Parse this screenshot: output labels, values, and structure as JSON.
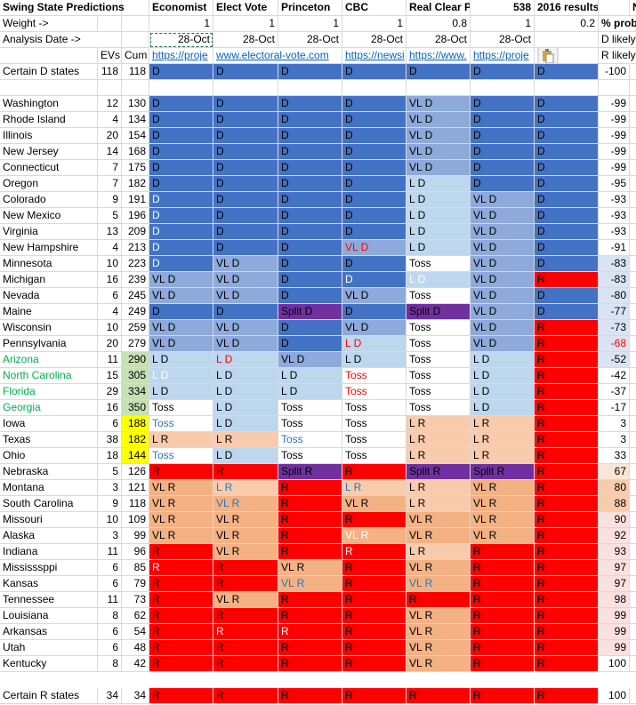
{
  "header": {
    "title": "Swing State Predictions",
    "sources": [
      "Economist",
      "Elect Vote",
      "Princeton",
      "CBC",
      "Real Clear P",
      "538",
      "2016 results"
    ],
    "next_col": "N"
  },
  "weight": {
    "label": "Weight ->",
    "values": [
      1,
      1,
      1,
      1,
      0.8,
      1,
      0.2
    ],
    "prob_label": "% prob"
  },
  "date": {
    "label": "Analysis Date ->",
    "values": [
      "28-Oct",
      "28-Oct",
      "28-Oct",
      "28-Oct",
      "28-Oct",
      "28-Oct"
    ],
    "prob_label": "D likely"
  },
  "links": {
    "evs": "EVs",
    "cum": "Cum",
    "urls": [
      "https://proje",
      "www.electoral-vote.com",
      null,
      "https://newsi",
      "https://www.",
      "https://proje"
    ],
    "prob_label": "R likely"
  },
  "rows": [
    {
      "state": "Certain D states",
      "evs": 118,
      "cum": 118,
      "calls": [
        "D",
        "D",
        "D",
        "D",
        "D",
        "D",
        "D"
      ],
      "fills": [
        "#4472c4",
        "#4472c4",
        "#4472c4",
        "#4472c4",
        "#4472c4",
        "#4472c4",
        "#4472c4"
      ],
      "prob": -100,
      "prob_fill": "#ffffff"
    },
    {
      "state": "Washington",
      "evs": 12,
      "cum": 130,
      "calls": [
        "D",
        "D",
        "D",
        "D",
        "VL D",
        "D",
        "D"
      ],
      "fills": [
        "#4472c4",
        "#4472c4",
        "#4472c4",
        "#4472c4",
        "#8eaadb",
        "#4472c4",
        "#4472c4"
      ],
      "prob": -99,
      "prob_fill": "#ffffff"
    },
    {
      "state": "Rhode Island",
      "evs": 4,
      "cum": 134,
      "calls": [
        "D",
        "D",
        "D",
        "D",
        "VL D",
        "D",
        "D"
      ],
      "fills": [
        "#4472c4",
        "#4472c4",
        "#4472c4",
        "#4472c4",
        "#8eaadb",
        "#4472c4",
        "#4472c4"
      ],
      "prob": -99,
      "prob_fill": "#ffffff"
    },
    {
      "state": "Illinois",
      "evs": 20,
      "cum": 154,
      "calls": [
        "D",
        "D",
        "D",
        "D",
        "VL D",
        "D",
        "D"
      ],
      "fills": [
        "#4472c4",
        "#4472c4",
        "#4472c4",
        "#4472c4",
        "#8eaadb",
        "#4472c4",
        "#4472c4"
      ],
      "prob": -99,
      "prob_fill": "#ffffff"
    },
    {
      "state": "New Jersey",
      "evs": 14,
      "cum": 168,
      "calls": [
        "D",
        "D",
        "D",
        "D",
        "VL D",
        "D",
        "D"
      ],
      "fills": [
        "#4472c4",
        "#4472c4",
        "#4472c4",
        "#4472c4",
        "#8eaadb",
        "#4472c4",
        "#4472c4"
      ],
      "prob": -99,
      "prob_fill": "#ffffff"
    },
    {
      "state": "Connecticut",
      "evs": 7,
      "cum": 175,
      "calls": [
        "D",
        "D",
        "D",
        "D",
        "VL D",
        "D",
        "D"
      ],
      "fills": [
        "#4472c4",
        "#4472c4",
        "#4472c4",
        "#4472c4",
        "#8eaadb",
        "#4472c4",
        "#4472c4"
      ],
      "prob": -99,
      "prob_fill": "#ffffff"
    },
    {
      "state": "Oregon",
      "evs": 7,
      "cum": 182,
      "calls": [
        "D",
        "D",
        "D",
        "D",
        "L D",
        "D",
        "D"
      ],
      "fills": [
        "#4472c4",
        "#4472c4",
        "#4472c4",
        "#4472c4",
        "#bdd7ee",
        "#4472c4",
        "#4472c4"
      ],
      "prob": -95,
      "prob_fill": "#ffffff"
    },
    {
      "state": "Colorado",
      "evs": 9,
      "cum": 191,
      "calls": [
        "D",
        "D",
        "D",
        "D",
        "L D",
        "VL D",
        "D"
      ],
      "fills": [
        "#4472c4",
        "#4472c4",
        "#4472c4",
        "#4472c4",
        "#bdd7ee",
        "#8eaadb",
        "#4472c4"
      ],
      "inks": [
        "#ffffff"
      ],
      "prob": -93,
      "prob_fill": "#ffffff"
    },
    {
      "state": "New Mexico",
      "evs": 5,
      "cum": 196,
      "calls": [
        "D",
        "D",
        "D",
        "D",
        "L D",
        "VL D",
        "D"
      ],
      "fills": [
        "#4472c4",
        "#4472c4",
        "#4472c4",
        "#4472c4",
        "#bdd7ee",
        "#8eaadb",
        "#4472c4"
      ],
      "inks": [
        "#ffffff"
      ],
      "prob": -93,
      "prob_fill": "#ffffff"
    },
    {
      "state": "Virginia",
      "evs": 13,
      "cum": 209,
      "calls": [
        "D",
        "D",
        "D",
        "D",
        "L D",
        "VL D",
        "D"
      ],
      "fills": [
        "#4472c4",
        "#4472c4",
        "#4472c4",
        "#4472c4",
        "#bdd7ee",
        "#8eaadb",
        "#4472c4"
      ],
      "inks": [
        "#ffffff"
      ],
      "prob": -93,
      "prob_fill": "#ffffff"
    },
    {
      "state": "New Hampshire",
      "evs": 4,
      "cum": 213,
      "calls": [
        "D",
        "D",
        "D",
        "VL D",
        "L D",
        "VL D",
        "D"
      ],
      "fills": [
        "#4472c4",
        "#4472c4",
        "#4472c4",
        "#8eaadb",
        "#bdd7ee",
        "#8eaadb",
        "#4472c4"
      ],
      "inks": [
        "#ffffff",
        null,
        null,
        "#ff0000"
      ],
      "prob": -91,
      "prob_fill": "#ffffff"
    },
    {
      "state": "Minnesota",
      "evs": 10,
      "cum": 223,
      "calls": [
        "D",
        "VL D",
        "D",
        "D",
        "Toss",
        "VL D",
        "D"
      ],
      "fills": [
        "#4472c4",
        "#8eaadb",
        "#4472c4",
        "#4472c4",
        "#ffffff",
        "#8eaadb",
        "#4472c4"
      ],
      "inks": [
        "#ffffff"
      ],
      "prob": -83,
      "prob_fill": "#dae3f3"
    },
    {
      "state": "Michigan",
      "evs": 16,
      "cum": 239,
      "calls": [
        "VL D",
        "VL D",
        "D",
        "D",
        "L D",
        "VL D",
        "R"
      ],
      "fills": [
        "#8eaadb",
        "#8eaadb",
        "#4472c4",
        "#4472c4",
        "#bdd7ee",
        "#8eaadb",
        "#ff0000"
      ],
      "inks": [
        null,
        null,
        null,
        "#ffffff",
        "#ffffff"
      ],
      "prob": -83,
      "prob_fill": "#dae3f3"
    },
    {
      "state": "Nevada",
      "evs": 6,
      "cum": 245,
      "calls": [
        "VL D",
        "VL D",
        "D",
        "VL D",
        "Toss",
        "VL D",
        "D"
      ],
      "fills": [
        "#8eaadb",
        "#8eaadb",
        "#4472c4",
        "#8eaadb",
        "#ffffff",
        "#8eaadb",
        "#4472c4"
      ],
      "prob": -80,
      "prob_fill": "#dae3f3"
    },
    {
      "state": "Maine",
      "evs": 4,
      "cum": 249,
      "calls": [
        "D",
        "D",
        "Split D",
        "D",
        "Split D",
        "VL D",
        "D"
      ],
      "fills": [
        "#4472c4",
        "#4472c4",
        "#7030a0",
        "#4472c4",
        "#7030a0",
        "#8eaadb",
        "#4472c4"
      ],
      "prob": -77,
      "prob_fill": "#dae3f3"
    },
    {
      "state": "Wisconsin",
      "evs": 10,
      "cum": 259,
      "calls": [
        "VL D",
        "VL D",
        "D",
        "VL D",
        "Toss",
        "VL D",
        "R"
      ],
      "fills": [
        "#8eaadb",
        "#8eaadb",
        "#4472c4",
        "#8eaadb",
        "#ffffff",
        "#8eaadb",
        "#ff0000"
      ],
      "prob": -73,
      "prob_fill": "#dae3f3"
    },
    {
      "state": "Pennsylvania",
      "evs": 20,
      "cum": 279,
      "calls": [
        "VL D",
        "VL D",
        "D",
        "L D",
        "Toss",
        "VL D",
        "R"
      ],
      "fills": [
        "#8eaadb",
        "#8eaadb",
        "#4472c4",
        "#bdd7ee",
        "#ffffff",
        "#8eaadb",
        "#ff0000"
      ],
      "inks": [
        null,
        null,
        null,
        "#ff0000"
      ],
      "prob": -68,
      "prob_fill": "#dae3f3",
      "prob_ink": "#ff0000"
    },
    {
      "state": "Arizona",
      "state_ink": "#00b050",
      "cum_fill": "#c6e0b4",
      "evs": 11,
      "cum": 290,
      "calls": [
        "L D",
        "L D",
        "VL D",
        "L D",
        "Toss",
        "L D",
        "R"
      ],
      "fills": [
        "#bdd7ee",
        "#bdd7ee",
        "#8eaadb",
        "#bdd7ee",
        "#ffffff",
        "#bdd7ee",
        "#ff0000"
      ],
      "inks": [
        null,
        "#ff0000"
      ],
      "prob": -52,
      "prob_fill": "#dae3f3"
    },
    {
      "state": "North Carolina",
      "state_ink": "#00b050",
      "cum_fill": "#c6e0b4",
      "evs": 15,
      "cum": 305,
      "calls": [
        "L D",
        "L D",
        "L D",
        "Toss",
        "Toss",
        "L D",
        "R"
      ],
      "fills": [
        "#bdd7ee",
        "#bdd7ee",
        "#bdd7ee",
        "#ffffff",
        "#ffffff",
        "#bdd7ee",
        "#ff0000"
      ],
      "inks": [
        "#ffffff",
        null,
        null,
        "#ff0000"
      ],
      "prob": -42,
      "prob_fill": "#ffffff"
    },
    {
      "state": "Florida",
      "state_ink": "#00b050",
      "cum_fill": "#c6e0b4",
      "evs": 29,
      "cum": 334,
      "calls": [
        "L D",
        "L D",
        "L D",
        "Toss",
        "Toss",
        "L D",
        "R"
      ],
      "fills": [
        "#bdd7ee",
        "#bdd7ee",
        "#bdd7ee",
        "#ffffff",
        "#ffffff",
        "#bdd7ee",
        "#ff0000"
      ],
      "inks": [
        null,
        null,
        null,
        "#ff0000"
      ],
      "prob": -37,
      "prob_fill": "#ffffff"
    },
    {
      "state": "Georgia",
      "state_ink": "#00b050",
      "cum_fill": "#c6e0b4",
      "evs": 16,
      "cum": 350,
      "calls": [
        "Toss",
        "L D",
        "Toss",
        "Toss",
        "Toss",
        "L D",
        "R"
      ],
      "fills": [
        "#ffffff",
        "#bdd7ee",
        "#ffffff",
        "#ffffff",
        "#ffffff",
        "#bdd7ee",
        "#ff0000"
      ],
      "prob": -17,
      "prob_fill": "#ffffff"
    },
    {
      "state": "Iowa",
      "cum_fill": "#ffff00",
      "evs": 6,
      "cum": 188,
      "calls": [
        "Toss",
        "L D",
        "Toss",
        "Toss",
        "L R",
        "L R",
        "R"
      ],
      "fills": [
        "#ffffff",
        "#bdd7ee",
        "#ffffff",
        "#ffffff",
        "#f8cbad",
        "#f8cbad",
        "#ff0000"
      ],
      "inks": [
        "#2e75b6"
      ],
      "prob": 3,
      "prob_fill": "#ffffff"
    },
    {
      "state": "Texas",
      "cum_fill": "#ffff00",
      "evs": 38,
      "cum": 182,
      "calls": [
        "L R",
        "L R",
        "Toss",
        "Toss",
        "L R",
        "L R",
        "R"
      ],
      "fills": [
        "#f8cbad",
        "#f8cbad",
        "#ffffff",
        "#ffffff",
        "#f8cbad",
        "#f8cbad",
        "#ff0000"
      ],
      "inks": [
        null,
        null,
        "#2e75b6"
      ],
      "prob": 3,
      "prob_fill": "#ffffff"
    },
    {
      "state": "Ohio",
      "cum_fill": "#ffff00",
      "evs": 18,
      "cum": 144,
      "calls": [
        "Toss",
        "L D",
        "Toss",
        "Toss",
        "L R",
        "L R",
        "R"
      ],
      "fills": [
        "#ffffff",
        "#bdd7ee",
        "#ffffff",
        "#ffffff",
        "#f8cbad",
        "#f8cbad",
        "#ff0000"
      ],
      "inks": [
        "#2e75b6"
      ],
      "prob": 33,
      "prob_fill": "#ffffff"
    },
    {
      "state": "Nebraska",
      "evs": 5,
      "cum": 126,
      "calls": [
        "R",
        "R",
        "Split R",
        "R",
        "Split R",
        "Split R",
        "R"
      ],
      "fills": [
        "#ff0000",
        "#ff0000",
        "#7030a0",
        "#ff0000",
        "#7030a0",
        "#7030a0",
        "#ff0000"
      ],
      "prob": 67,
      "prob_fill": "#fbe5d6"
    },
    {
      "state": "Montana",
      "evs": 3,
      "cum": 121,
      "calls": [
        "VL R",
        "L R",
        "R",
        "L R",
        "L R",
        "VL R",
        "R"
      ],
      "fills": [
        "#f4b183",
        "#f8cbad",
        "#ff0000",
        "#f8cbad",
        "#f8cbad",
        "#f4b183",
        "#ff0000"
      ],
      "inks": [
        null,
        "#2e75b6",
        null,
        "#2e75b6"
      ],
      "prob": 80,
      "prob_fill": "#f8cbad"
    },
    {
      "state": "South Carolina",
      "evs": 9,
      "cum": 118,
      "calls": [
        "VL R",
        "VL R",
        "R",
        "VL R",
        "L R",
        "VL R",
        "R"
      ],
      "fills": [
        "#f4b183",
        "#f4b183",
        "#ff0000",
        "#f4b183",
        "#f8cbad",
        "#f4b183",
        "#ff0000"
      ],
      "inks": [
        null,
        "#2e75b6"
      ],
      "prob": 88,
      "prob_fill": "#f8cbad"
    },
    {
      "state": "Missouri",
      "evs": 10,
      "cum": 109,
      "calls": [
        "VL R",
        "VL R",
        "R",
        "R",
        "VL R",
        "VL R",
        "R"
      ],
      "fills": [
        "#f4b183",
        "#f4b183",
        "#ff0000",
        "#ff0000",
        "#f4b183",
        "#f4b183",
        "#ff0000"
      ],
      "prob": 90,
      "prob_fill": "#fbe0e0"
    },
    {
      "state": "Alaska",
      "evs": 3,
      "cum": 99,
      "calls": [
        "VL R",
        "VL R",
        "R",
        "VL R",
        "VL R",
        "VL R",
        "R"
      ],
      "fills": [
        "#f4b183",
        "#f4b183",
        "#ff0000",
        "#f4b183",
        "#f4b183",
        "#f4b183",
        "#ff0000"
      ],
      "inks": [
        null,
        null,
        null,
        "#ffffff"
      ],
      "prob": 92,
      "prob_fill": "#fbe0e0"
    },
    {
      "state": "Indiana",
      "evs": 11,
      "cum": 96,
      "calls": [
        "R",
        "VL R",
        "R",
        "R",
        "L R",
        "R",
        "R"
      ],
      "fills": [
        "#ff0000",
        "#f4b183",
        "#ff0000",
        "#ff0000",
        "#f8cbad",
        "#ff0000",
        "#ff0000"
      ],
      "inks": [
        null,
        null,
        null,
        "#ffffff"
      ],
      "prob": 93,
      "prob_fill": "#fbe0e0"
    },
    {
      "state": "Mississsppi",
      "evs": 6,
      "cum": 85,
      "calls": [
        "R",
        "R",
        "VL R",
        "R",
        "VL R",
        "R",
        "R"
      ],
      "fills": [
        "#ff0000",
        "#ff0000",
        "#f4b183",
        "#ff0000",
        "#f4b183",
        "#ff0000",
        "#ff0000"
      ],
      "inks": [
        "#ffffff"
      ],
      "prob": 97,
      "prob_fill": "#fbe0e0"
    },
    {
      "state": "Kansas",
      "evs": 6,
      "cum": 79,
      "calls": [
        "R",
        "R",
        "VL R",
        "R",
        "VL R",
        "R",
        "R"
      ],
      "fills": [
        "#ff0000",
        "#ff0000",
        "#f4b183",
        "#ff0000",
        "#f4b183",
        "#ff0000",
        "#ff0000"
      ],
      "inks": [
        null,
        null,
        "#2e75b6",
        null,
        "#2e75b6"
      ],
      "prob": 97,
      "prob_fill": "#fbe0e0"
    },
    {
      "state": "Tennessee",
      "evs": 11,
      "cum": 73,
      "calls": [
        "R",
        "VL R",
        "R",
        "R",
        "R",
        "R",
        "R"
      ],
      "fills": [
        "#ff0000",
        "#f4b183",
        "#ff0000",
        "#ff0000",
        "#ff0000",
        "#ff0000",
        "#ff0000"
      ],
      "prob": 98,
      "prob_fill": "#fbe0e0"
    },
    {
      "state": "Louisiana",
      "evs": 8,
      "cum": 62,
      "calls": [
        "R",
        "R",
        "R",
        "R",
        "VL R",
        "R",
        "R"
      ],
      "fills": [
        "#ff0000",
        "#ff0000",
        "#ff0000",
        "#ff0000",
        "#f4b183",
        "#ff0000",
        "#ff0000"
      ],
      "prob": 99,
      "prob_fill": "#fbe0e0"
    },
    {
      "state": "Arkansas",
      "evs": 6,
      "cum": 54,
      "calls": [
        "R",
        "R",
        "R",
        "R",
        "VL R",
        "R",
        "R"
      ],
      "fills": [
        "#ff0000",
        "#ff0000",
        "#ff0000",
        "#ff0000",
        "#f4b183",
        "#ff0000",
        "#ff0000"
      ],
      "inks": [
        null,
        "#ffffff",
        "#ffffff"
      ],
      "prob": 99,
      "prob_fill": "#fbe0e0"
    },
    {
      "state": "Utah",
      "evs": 6,
      "cum": 48,
      "calls": [
        "R",
        "R",
        "R",
        "R",
        "VL R",
        "R",
        "R"
      ],
      "fills": [
        "#ff0000",
        "#ff0000",
        "#ff0000",
        "#ff0000",
        "#f4b183",
        "#ff0000",
        "#ff0000"
      ],
      "prob": 99,
      "prob_fill": "#fbe0e0"
    },
    {
      "state": "Kentucky",
      "evs": 8,
      "cum": 42,
      "calls": [
        "R",
        "R",
        "R",
        "R",
        "VL R",
        "R",
        "R"
      ],
      "fills": [
        "#ff0000",
        "#ff0000",
        "#ff0000",
        "#ff0000",
        "#f4b183",
        "#ff0000",
        "#ff0000"
      ],
      "prob": 100,
      "prob_fill": "#ffffff"
    },
    {
      "state": "Certain R states",
      "evs": 34,
      "cum": 34,
      "calls": [
        "R",
        "R",
        "R",
        "R",
        "R",
        "R",
        "R"
      ],
      "fills": [
        "#ff0000",
        "#ff0000",
        "#ff0000",
        "#ff0000",
        "#ff0000",
        "#ff0000",
        "#ff0000"
      ],
      "prob": 100,
      "prob_fill": "#ffffff"
    }
  ]
}
